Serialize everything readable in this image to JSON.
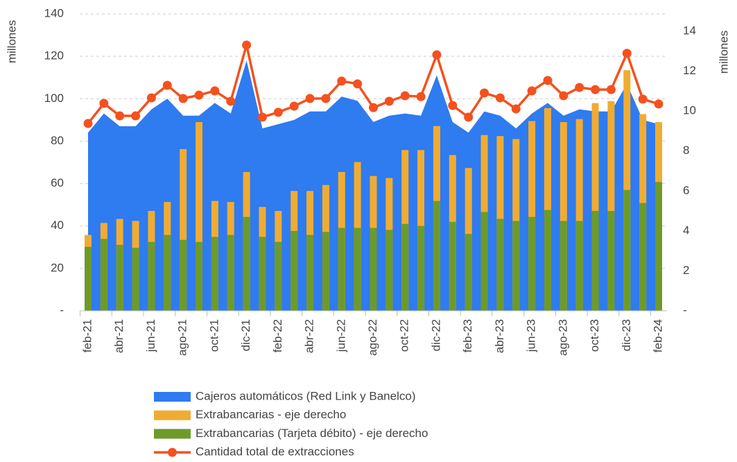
{
  "chart_data": {
    "type": "combo",
    "y_label": "millones",
    "y2_label": "millones",
    "categories": [
      "feb-21",
      null,
      "abr-21",
      null,
      "jun-21",
      null,
      "ago-21",
      null,
      "oct-21",
      null,
      "dic-21",
      null,
      "feb-22",
      null,
      "abr-22",
      null,
      "jun-22",
      null,
      "ago-22",
      null,
      "oct-22",
      null,
      "dic-22",
      null,
      "feb-23",
      null,
      "abr-23",
      null,
      "jun-23",
      null,
      "ago-23",
      null,
      "oct-23",
      null,
      "dic-23",
      null,
      "feb-24"
    ],
    "ylim": [
      0,
      140
    ],
    "yticks": [
      {
        "value": 0,
        "label": "-"
      },
      20,
      40,
      60,
      80,
      100,
      120,
      140
    ],
    "y2lim": [
      0,
      14.87
    ],
    "y2ticks": [
      {
        "value": 0,
        "label": "-"
      },
      2,
      4,
      6,
      8,
      10,
      12,
      14
    ],
    "grid": true,
    "series": [
      {
        "name": "Cajeros automáticos (Red Link y Banelco)",
        "type": "area",
        "color": "#2f7bf0",
        "values": [
          84,
          93,
          87,
          87,
          95,
          100,
          92,
          92,
          98,
          93,
          118,
          86,
          88,
          90,
          94,
          94,
          101,
          99,
          89,
          92,
          93,
          92,
          111,
          89,
          84,
          94,
          92,
          86,
          93,
          98,
          92,
          95,
          94,
          94,
          107,
          90,
          88
        ]
      },
      {
        "name": "Extrabancarias - eje derecho",
        "type": "bar",
        "axis": "y2",
        "color": "#f0ac32",
        "values": [
          3.8,
          4.4,
          4.6,
          4.5,
          5.0,
          5.45,
          8.1,
          9.45,
          5.5,
          5.45,
          6.95,
          5.2,
          5.0,
          6.0,
          6.0,
          6.3,
          6.95,
          7.45,
          6.75,
          6.65,
          8.05,
          8.05,
          9.25,
          7.8,
          7.15,
          8.8,
          8.75,
          8.6,
          9.5,
          10.15,
          9.45,
          9.6,
          10.4,
          10.5,
          12.05,
          9.85,
          9.45
        ]
      },
      {
        "name": "Extrabancarias (Tarjeta débito) - eje derecho",
        "type": "bar",
        "axis": "y2",
        "color": "#6e9a2a",
        "values": [
          3.2,
          3.6,
          3.3,
          3.15,
          3.45,
          3.8,
          3.55,
          3.45,
          3.7,
          3.8,
          4.7,
          3.7,
          3.45,
          4.0,
          3.8,
          3.95,
          4.15,
          4.15,
          4.15,
          4.05,
          4.35,
          4.25,
          5.5,
          4.45,
          3.85,
          4.95,
          4.6,
          4.5,
          4.7,
          5.05,
          4.5,
          4.5,
          5.0,
          5.0,
          6.05,
          5.4,
          6.45
        ]
      },
      {
        "name": "Cantidad total de extracciones",
        "type": "line",
        "color": "#f4511e",
        "values": [
          88.3,
          97.8,
          91.9,
          91.9,
          100.4,
          106.3,
          100.1,
          101.7,
          103.7,
          98.8,
          125.3,
          91.3,
          93.6,
          96.5,
          100.1,
          100.1,
          108.3,
          107,
          95.8,
          98.8,
          101.4,
          101,
          120.7,
          96.8,
          91.3,
          102.7,
          100.4,
          95.2,
          103.7,
          108.6,
          101.4,
          105.3,
          104.3,
          104.3,
          121.4,
          99.8,
          97.5
        ]
      }
    ]
  }
}
